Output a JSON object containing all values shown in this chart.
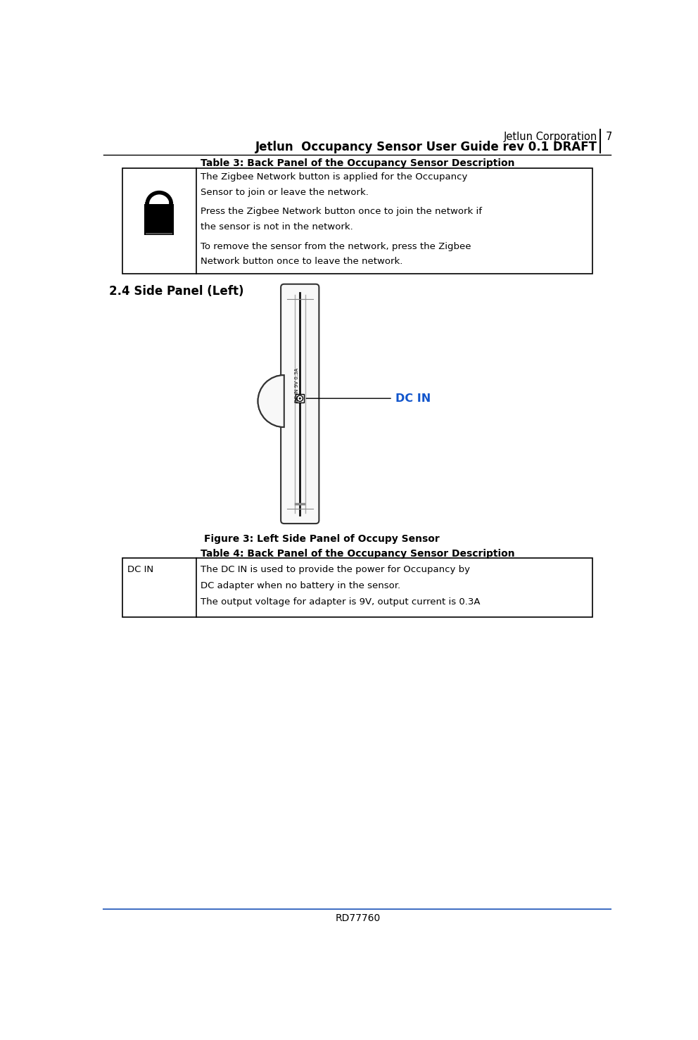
{
  "bg_color": "#ffffff",
  "header_line1": "Jetlun Corporation",
  "header_line2": "Jetlun  Occupancy Sensor User Guide rev 0.1 DRAFT",
  "page_number": "7",
  "table3_title": "Table 3: Back Panel of the Occupancy Sensor Description",
  "table3_text_line1": "The Zigbee Network button is applied for the Occupancy",
  "table3_text_line2": "Sensor to join or leave the network.",
  "table3_text_line3": "Press the Zigbee Network button once to join the network if",
  "table3_text_line4": "the sensor is not in the network.",
  "table3_text_line5": "To remove the sensor from the network, press the Zigbee",
  "table3_text_line6": "Network button once to leave the network.",
  "section_title": "2.4 Side Panel (Left)",
  "figure_caption": "Figure 3: Left Side Panel of Occupy Sensor",
  "table4_title": "Table 4: Back Panel of the Occupancy Sensor Description",
  "table4_col1": "DC IN",
  "table4_text_line1": "The DC IN is used to provide the power for Occupancy by",
  "table4_text_line2": "DC adapter when no battery in the sensor.",
  "table4_text_line3": "The output voltage for adapter is 9V, output current is 0.3A",
  "footer_text": "RD77760",
  "dc_in_label": "DC IN",
  "dc_in_label_color": "#1155cc",
  "body_color": "#f8f8f8",
  "body_edge_color": "#333333",
  "center_line_color": "#111111",
  "side_line_color": "#888888"
}
